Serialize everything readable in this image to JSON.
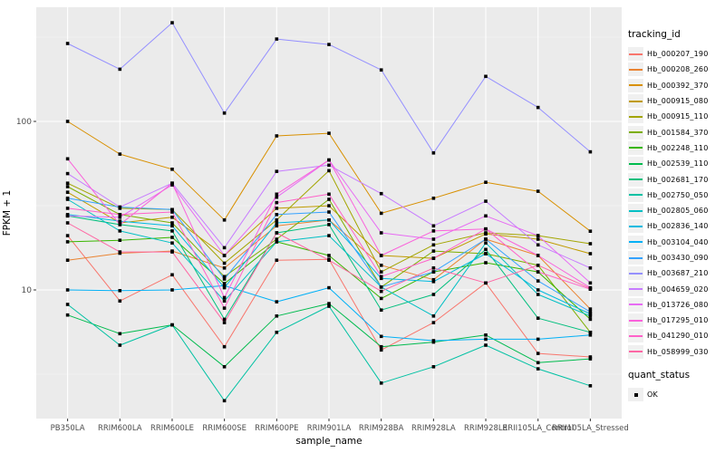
{
  "figure": {
    "background": "#FFFFFF",
    "panel_background": "#EBEBEB",
    "major_grid_color": "#FFFFFF",
    "minor_grid_color": "#F7F7F7",
    "tick_label_color": "#4D4D4D",
    "tick_mark_color": "#333333",
    "point_color": "#000000",
    "point_shape": "filled-square"
  },
  "chart_data": {
    "type": "line",
    "title": "",
    "xlabel": "sample_name",
    "ylabel": "FPKM + 1",
    "y_scale": "log10",
    "ylim": [
      1.7,
      480
    ],
    "y_ticks": [
      10,
      100
    ],
    "y_minor_ticks": [
      3.162,
      31.62,
      316.2
    ],
    "grid": true,
    "legend_position": "right",
    "categories": [
      "PB350LA",
      "RRIM600LA",
      "RRIM600LE",
      "RRIM600SE",
      "RRIM600PE",
      "RRIM901LA",
      "RRIM928BA",
      "RRIM928LA",
      "RRIM928LE",
      "RRII105LA_Control",
      "RRII105LA_Stressed"
    ],
    "series": [
      {
        "name": "Hb_000207_190",
        "color": "#F8766D",
        "values": [
          21,
          8.6,
          12.3,
          4.6,
          15,
          15.2,
          4.4,
          6.4,
          11,
          4.2,
          4.0
        ]
      },
      {
        "name": "Hb_000208_260",
        "color": "#EA8331",
        "values": [
          15,
          16.5,
          17,
          13.5,
          24,
          26,
          14,
          11.5,
          20,
          16,
          7.7
        ]
      },
      {
        "name": "Hb_000392_370",
        "color": "#D89000",
        "values": [
          100,
          64,
          52,
          26,
          82,
          85,
          28.5,
          35,
          43.5,
          38.5,
          22.3
        ]
      },
      {
        "name": "Hb_000915_080",
        "color": "#C09B00",
        "values": [
          38,
          25,
          27,
          16,
          30.5,
          31.6,
          16,
          15.4,
          21.5,
          20,
          16.4
        ]
      },
      {
        "name": "Hb_000915_110",
        "color": "#A3A500",
        "values": [
          43,
          30.5,
          30,
          14.4,
          26,
          51,
          12.8,
          18.5,
          21.8,
          21,
          18.8
        ]
      },
      {
        "name": "Hb_001584_370",
        "color": "#7CAE00",
        "values": [
          41,
          28,
          25,
          12,
          20,
          34.5,
          10.4,
          17,
          16.4,
          14,
          5.6
        ]
      },
      {
        "name": "Hb_002248_110",
        "color": "#39B600",
        "values": [
          19.3,
          19.7,
          20.5,
          10.9,
          19.3,
          16,
          8.9,
          12.8,
          14.5,
          12.8,
          6.7
        ]
      },
      {
        "name": "Hb_002539_110",
        "color": "#00BB4E",
        "values": [
          7.1,
          5.5,
          6.2,
          3.5,
          7,
          8.3,
          4.6,
          4.9,
          5.4,
          3.7,
          3.9
        ]
      },
      {
        "name": "Hb_002681_170",
        "color": "#00BF7D",
        "values": [
          27.5,
          24.4,
          22.4,
          6.7,
          21.8,
          24.4,
          7.6,
          9.4,
          17.4,
          6.8,
          5.6
        ]
      },
      {
        "name": "Hb_002750_050",
        "color": "#00C1A3",
        "values": [
          8.2,
          4.7,
          6.2,
          2.2,
          5.6,
          8.0,
          2.8,
          3.5,
          4.7,
          3.4,
          2.7
        ]
      },
      {
        "name": "Hb_002805_060",
        "color": "#00BFC4",
        "values": [
          34.5,
          22.4,
          19,
          8.6,
          19.3,
          21,
          10.4,
          7,
          19,
          9.4,
          7.0
        ]
      },
      {
        "name": "Hb_002836_140",
        "color": "#00BAE0",
        "values": [
          28,
          25.6,
          24,
          10.3,
          25,
          26,
          11.7,
          11.2,
          16.4,
          10,
          7.2
        ]
      },
      {
        "name": "Hb_003104_040",
        "color": "#00B0F6",
        "values": [
          10,
          9.9,
          10,
          10.6,
          8.5,
          10.3,
          5.3,
          5.0,
          5.1,
          5.1,
          5.4
        ]
      },
      {
        "name": "Hb_003430_090",
        "color": "#35A2FF",
        "values": [
          35,
          31,
          30,
          11.6,
          28,
          29,
          10.4,
          12.8,
          20,
          11.3,
          7.4
        ]
      },
      {
        "name": "Hb_003687_210",
        "color": "#9590FF",
        "values": [
          290,
          204,
          385,
          112,
          308,
          286,
          202,
          65,
          185,
          121,
          66
        ]
      },
      {
        "name": "Hb_004659_020",
        "color": "#C77CFF",
        "values": [
          49,
          31,
          43,
          17.8,
          50.5,
          55,
          37.3,
          24,
          33.6,
          18.5,
          13.5
        ]
      },
      {
        "name": "Hb_013726_080",
        "color": "#E76BF3",
        "values": [
          27.5,
          27,
          42,
          16,
          35.5,
          59,
          21.8,
          20,
          27.5,
          21,
          11
        ]
      },
      {
        "name": "Hb_017295_010",
        "color": "#FA62DB",
        "values": [
          60,
          24.4,
          43,
          9,
          37,
          59,
          16,
          22.4,
          23,
          16,
          10.3
        ]
      },
      {
        "name": "Hb_041290_010",
        "color": "#FF61C9",
        "values": [
          30.5,
          28,
          29,
          7.8,
          33,
          37,
          12,
          15.4,
          23,
          12.8,
          10.1
        ]
      },
      {
        "name": "Hb_058999_030",
        "color": "#FF67A4",
        "values": [
          25,
          16.8,
          16.8,
          6.4,
          21.8,
          15,
          9.8,
          13.5,
          11,
          14,
          10.2
        ]
      }
    ]
  },
  "legend": {
    "tracking_title": "tracking_id",
    "quant_title": "quant_status",
    "quant_items": [
      {
        "label": "OK",
        "shape": "filled-square",
        "color": "#000000"
      }
    ]
  }
}
